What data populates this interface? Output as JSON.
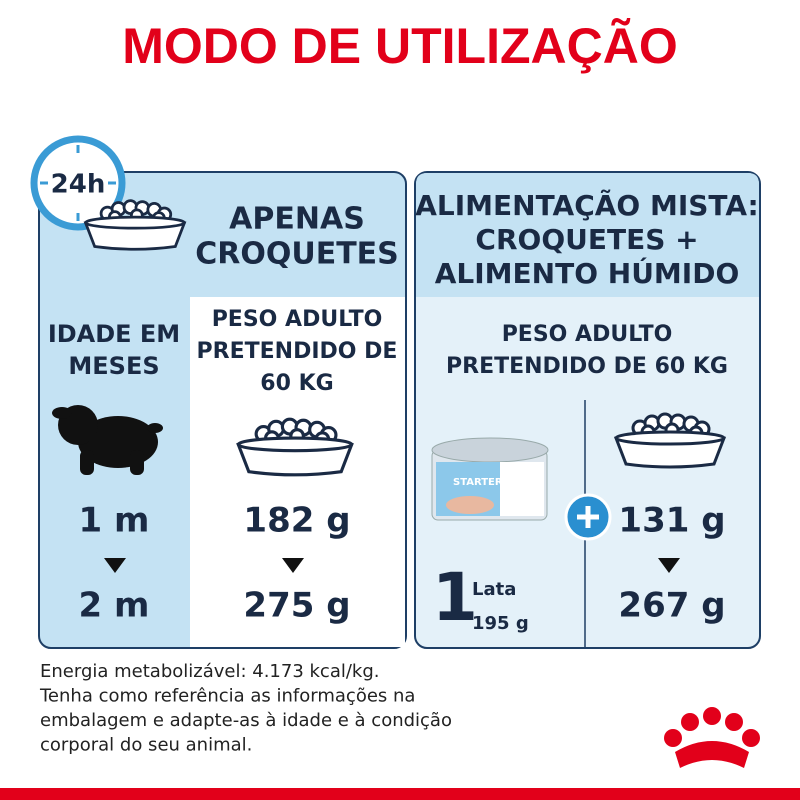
{
  "title": "MODO DE UTILIZAÇÃO",
  "clock_label": "24h",
  "left_panel": {
    "header": [
      "APENAS",
      "CROQUETES"
    ],
    "age_header": [
      "IDADE EM",
      "MESES"
    ],
    "weight_header": [
      "PESO ADULTO",
      "PRETENDIDO DE",
      "60 KG"
    ],
    "ages": [
      "1 m",
      "2 m"
    ],
    "amounts": [
      "182 g",
      "275 g"
    ]
  },
  "right_panel": {
    "header": [
      "ALIMENTAÇÃO MISTA:",
      "CROQUETES +",
      "ALIMENTO HÚMIDO"
    ],
    "weight_header": [
      "PESO ADULTO",
      "PRETENDIDO DE 60 KG"
    ],
    "wet_count": "1",
    "wet_unit": "Lata",
    "wet_weight": "195 g",
    "can_label": "STARTER",
    "amounts": [
      "131 g",
      "267 g"
    ]
  },
  "footer": [
    "Energia metabolizável: 4.173 kcal/kg.",
    "Tenha como referência as informações na",
    "embalagem e adapte-as à idade e à condição",
    "corporal do seu animal."
  ]
}
